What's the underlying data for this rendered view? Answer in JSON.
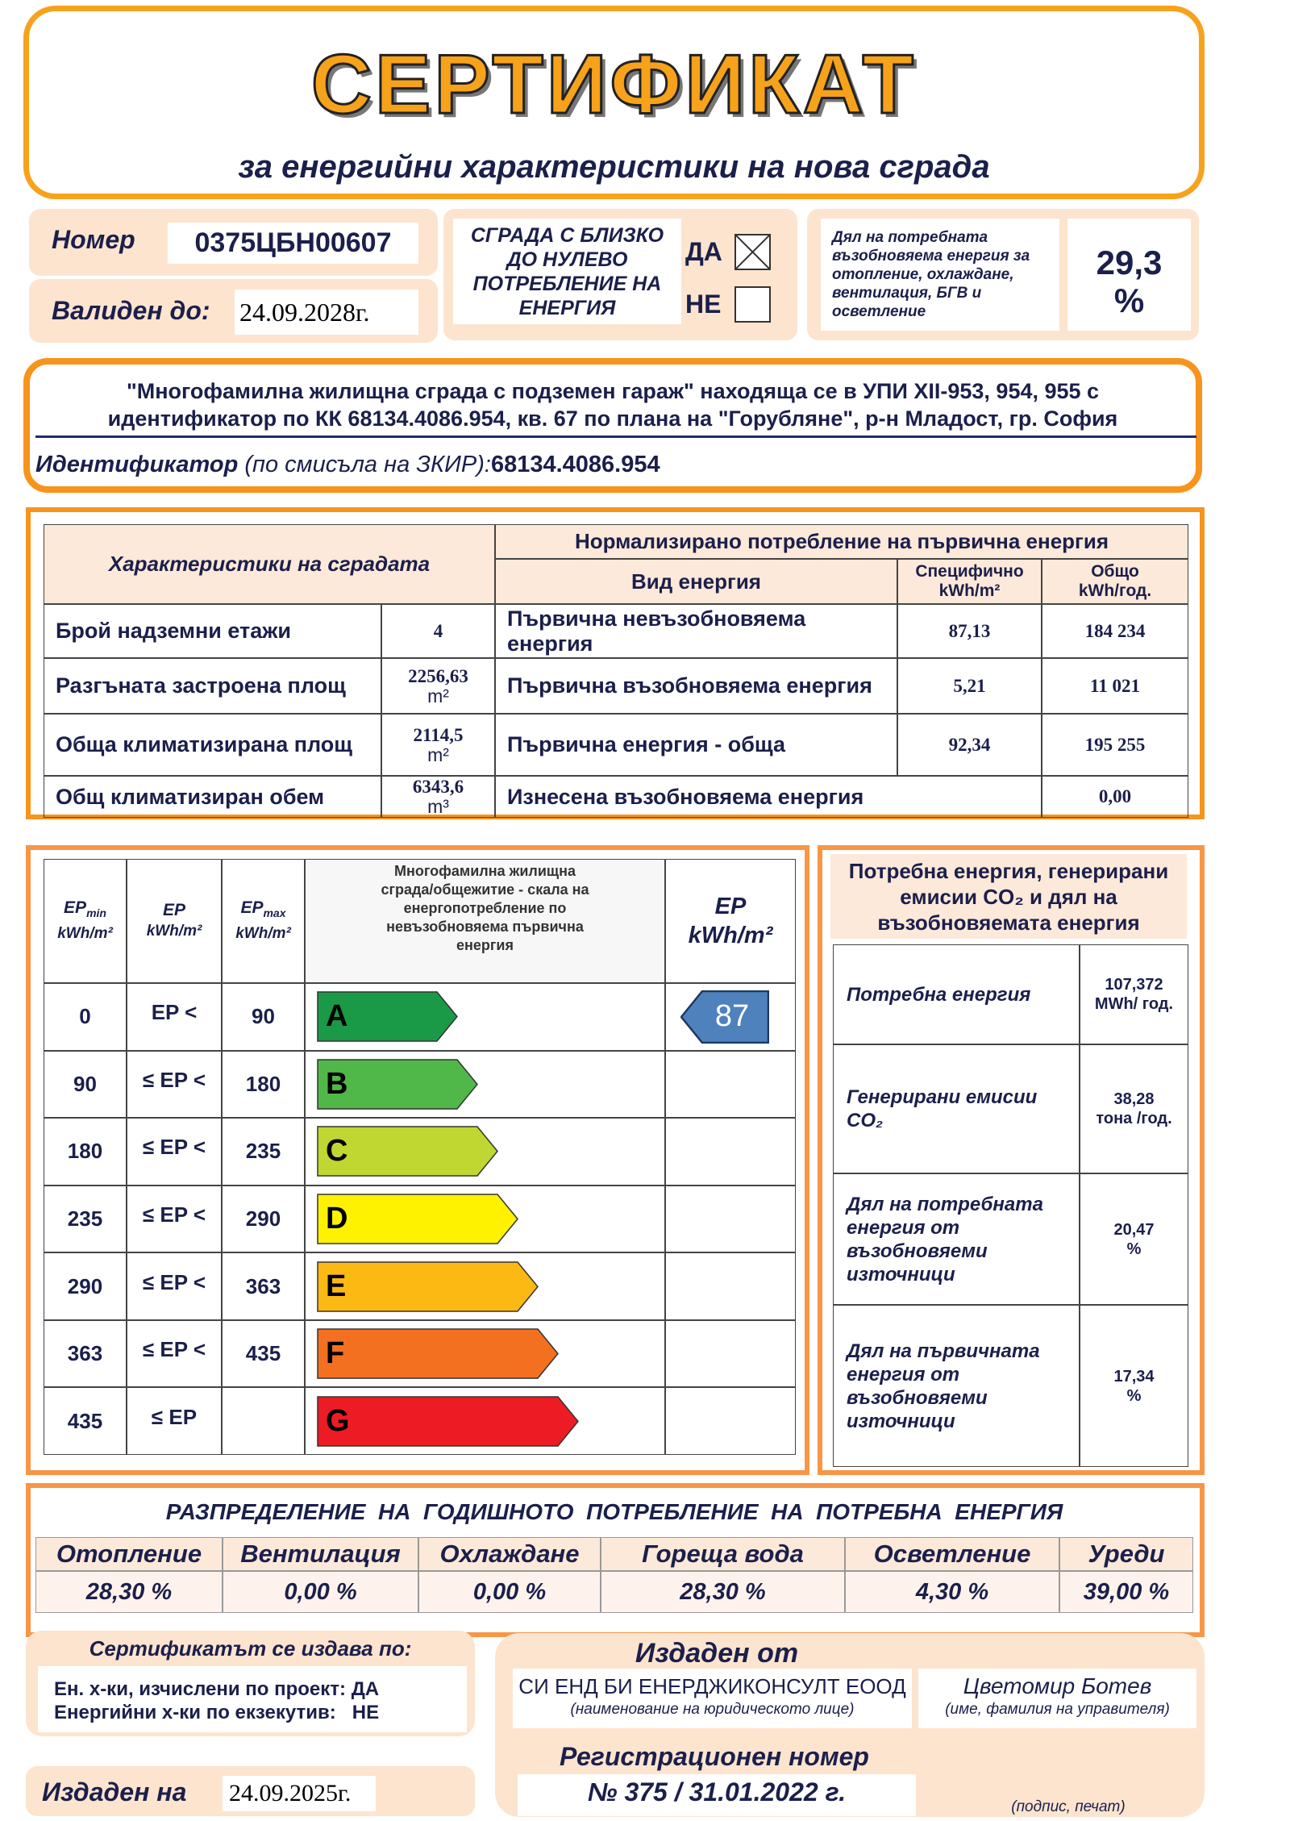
{
  "header": {
    "title": "СЕРТИФИКАТ",
    "subtitle": "за  енергийни характеристики на нова сграда"
  },
  "id_block": {
    "number_label": "Номер",
    "number": "0375ЦБН00607",
    "valid_label": "Валиден до:",
    "valid": "24.09.2028г."
  },
  "nzeb": {
    "question": "СГРАДА С БЛИЗКО ДО НУЛЕВО ПОТРЕБЛЕНИЕ НА ЕНЕРГИЯ",
    "yes": "ДА",
    "no": "НЕ",
    "yes_checked": true,
    "no_checked": false
  },
  "renewable_share": {
    "label": "Дял на потребната възобновяема енергия за отопление, охлаждане, вентилация, БГВ и  осветление",
    "value": "29,3",
    "unit": "%"
  },
  "building": {
    "description": [
      "\"Многофамилна жилищна сграда с подземен гараж\" находяща се в УПИ XII-953, 954, 955 с",
      "идентификатор по КК 68134.4086.954, кв. 67 по плана на \"Горубляне\", р-н Младост, гр. София"
    ],
    "identifier_label": "Идентификатор",
    "identifier_note": " (по смисъла на ЗКИР):",
    "identifier": "68134.4086.954"
  },
  "characteristics": {
    "title": "Характеристики на сградата",
    "rows": [
      {
        "label": "Брой надземни етажи",
        "value": "4"
      },
      {
        "label": "Разгъната застроена площ",
        "value": "2256,63",
        "unit": "m²"
      },
      {
        "label": "Обща климатизирана площ",
        "value": "2114,5",
        "unit": "m²"
      },
      {
        "label": "Общ климатизиран обем",
        "value": "6343,6",
        "unit": "m³"
      }
    ]
  },
  "primary_energy": {
    "title": "Нормализирано потребление на първична енергия",
    "col_type": "Вид енергия",
    "col_specific": "Специфично",
    "col_specific_unit": "kWh/m²",
    "col_total": "Общо",
    "col_total_unit": "kWh/год.",
    "rows": [
      {
        "type": "Първична невъзобновяема енергия",
        "specific": "87,13",
        "total": "184 234"
      },
      {
        "type": "Първична възобновяема енергия",
        "specific": "5,21",
        "total": "11 021"
      },
      {
        "type": "Първична енергия - обща",
        "specific": "92,34",
        "total": "195 255"
      },
      {
        "type": "Изнесена възобновяема енергия",
        "total": "0,00"
      }
    ]
  },
  "scale": {
    "columns": [
      {
        "label": "EP",
        "sub": "min",
        "unit": "kWh/m²"
      },
      {
        "label": "EP",
        "unit": "kWh/m²"
      },
      {
        "label": "EP",
        "sub": "max",
        "unit": "kWh/m²"
      }
    ],
    "description": "Многофамилна жилищна сграда/общежитие - скала на енергопотребление по невъзобновяема първична енергия",
    "ep_label": "EP",
    "ep_unit": "kWh/m²",
    "rating": 87,
    "classes": [
      {
        "min": 0,
        "op": "EP <",
        "max": 90,
        "label": "A",
        "color": "#1a9a47"
      },
      {
        "min": 90,
        "op": "≤ EP <",
        "max": 180,
        "label": "B",
        "color": "#50b848"
      },
      {
        "min": 180,
        "op": "≤ EP <",
        "max": 235,
        "label": "C",
        "color": "#bfd730"
      },
      {
        "min": 235,
        "op": "≤ EP <",
        "max": 290,
        "label": "D",
        "color": "#fff200"
      },
      {
        "min": 290,
        "op": "≤ EP <",
        "max": 363,
        "label": "E",
        "color": "#fdb913"
      },
      {
        "min": 363,
        "op": "≤ EP <",
        "max": 435,
        "label": "F",
        "color": "#f37021"
      },
      {
        "min": 435,
        "op": "≤ EP",
        "max": null,
        "label": "G",
        "color": "#ed1c24"
      }
    ]
  },
  "indicators": {
    "title": "Потребна енергия, генерирани емисии CO₂ и дял на възобновяемата енергия",
    "rows": [
      {
        "label": "Потребна енергия",
        "value": "107,372",
        "unit": "MWh/ год."
      },
      {
        "label": "Генерирани емисии CO₂",
        "value": "38,28",
        "unit": "тона /год."
      },
      {
        "label": "Дял на потребната енергия от възобновяеми източници",
        "value": "20,47",
        "unit": "%"
      },
      {
        "label": "Дял на първичната енергия от възобновяеми източници",
        "value": "17,34",
        "unit": "%"
      }
    ]
  },
  "distribution": {
    "title": "РАЗПРЕДЕЛЕНИЕ  НА  ГОДИШНОТО  ПОТРЕБЛЕНИЕ  НА  ПОТРЕБНА  ЕНЕРГИЯ",
    "items": [
      {
        "name": "Отопление",
        "value": "28,30 %"
      },
      {
        "name": "Вентилация",
        "value": "0,00 %"
      },
      {
        "name": "Охлаждане",
        "value": "0,00 %"
      },
      {
        "name": "Гореща вода",
        "value": "28,30 %"
      },
      {
        "name": "Осветление",
        "value": "4,30 %"
      },
      {
        "name": "Уреди",
        "value": "39,00 %"
      }
    ]
  },
  "issued_basis": {
    "title": "Сертификатът се издава по:",
    "lines": [
      "Ен. х-ки, изчислени по проект: ДА",
      "Енергийни х-ки по екзекутив:   НЕ"
    ]
  },
  "issued_on": {
    "label": "Издаден на",
    "date": "24.09.2025г."
  },
  "issuer": {
    "title": "Издаден от",
    "company": "СИ ЕНД БИ ЕНЕРДЖИКОНСУЛТ ЕООД",
    "company_note": "(наименование на юридическото лице)",
    "manager": "Цветомир Ботев",
    "manager_note": "(име, фамилия на управителя)",
    "reg_label": "Регистрационен номер",
    "reg": "№ 375 / 31.01.2022 г.",
    "signature_note": "(подпис, печат)"
  }
}
